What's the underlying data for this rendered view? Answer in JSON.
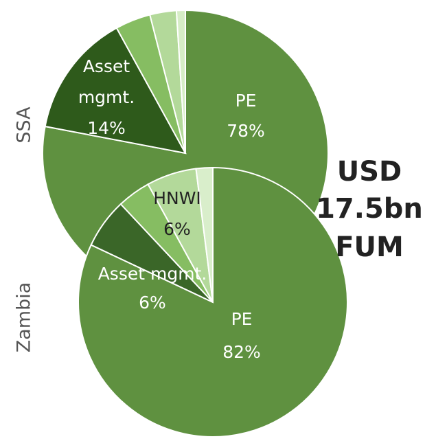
{
  "chart_data": [
    {
      "type": "pie",
      "title": "SSA",
      "categories": [
        "PE",
        "Asset mgmt.",
        null,
        null,
        null
      ],
      "values": [
        78,
        14,
        4,
        3,
        1
      ],
      "value_labels": [
        "78%",
        "14%",
        null,
        null,
        null
      ],
      "colors": [
        "#5f9140",
        "#2e5a1b",
        "#86bd62",
        "#b3d99a",
        "#d6edc6"
      ]
    },
    {
      "type": "pie",
      "title": "Zambia",
      "categories": [
        "PE",
        "Asset mgmt.",
        null,
        "HNWI",
        null
      ],
      "values": [
        82,
        6,
        4,
        6,
        2
      ],
      "value_labels": [
        "82%",
        "6%",
        null,
        "6%",
        null
      ],
      "colors": [
        "#5f9140",
        "#3a6628",
        "#86bd62",
        "#b3d99a",
        "#d9eecb"
      ]
    }
  ],
  "annotation_lines": [
    "USD",
    "17.5bn",
    "FUM"
  ]
}
